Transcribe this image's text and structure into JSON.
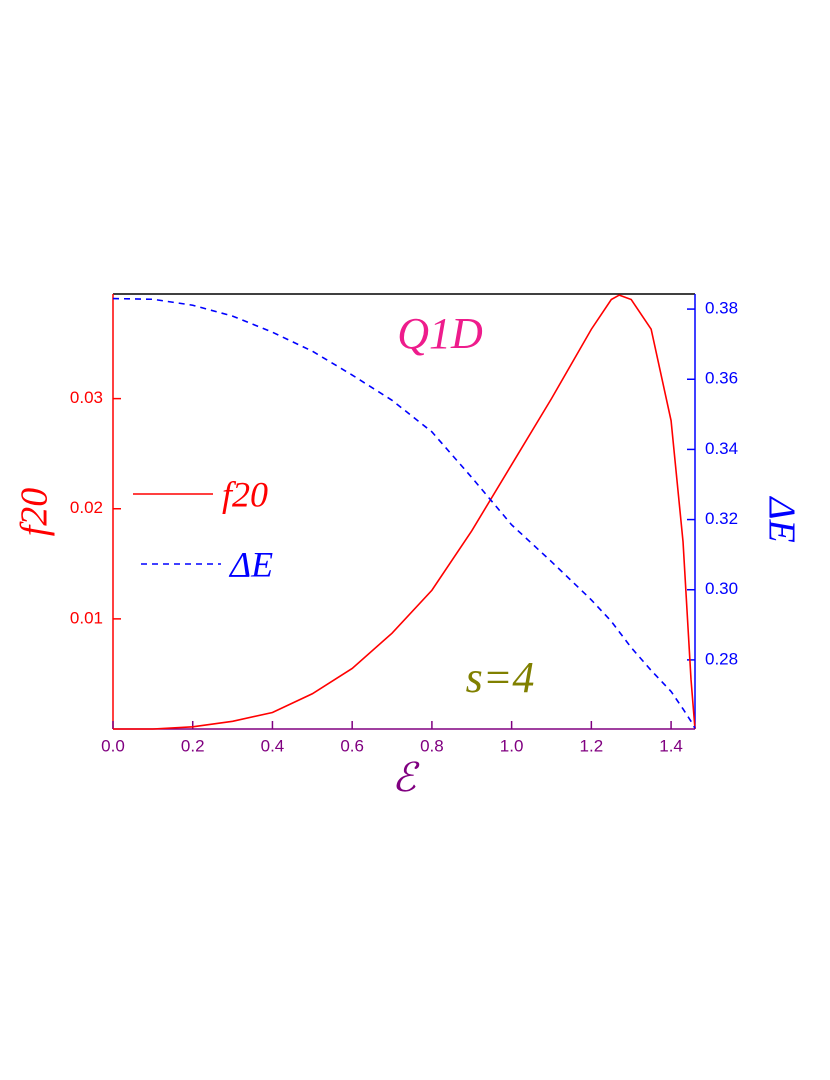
{
  "chart_data": {
    "type": "line",
    "x": [
      0,
      0.1,
      0.2,
      0.3,
      0.4,
      0.5,
      0.6,
      0.7,
      0.8,
      0.9,
      1.0,
      1.1,
      1.2,
      1.25,
      1.27,
      1.3,
      1.35,
      1.4,
      1.43,
      1.45,
      1.46
    ],
    "series": [
      {
        "name": "f20",
        "color": "#ff0000",
        "linestyle": "solid",
        "axis": "y",
        "values": [
          0,
          0,
          0.0002,
          0.0007,
          0.0015,
          0.0032,
          0.0055,
          0.0087,
          0.0126,
          0.018,
          0.024,
          0.03,
          0.0363,
          0.039,
          0.0394,
          0.039,
          0.0363,
          0.028,
          0.017,
          0.0045,
          0
        ]
      },
      {
        "name": "ΔE",
        "color": "#0000ff",
        "linestyle": "dashed",
        "axis": "y2",
        "values": [
          0.383,
          0.3828,
          0.3811,
          0.378,
          0.3734,
          0.368,
          0.3612,
          0.354,
          0.345,
          0.332,
          0.3185,
          0.308,
          0.2971,
          0.291,
          0.288,
          0.2835,
          0.277,
          0.271,
          0.266,
          0.2625,
          0.2605
        ]
      }
    ],
    "xlabel": "ℰ",
    "ylabel": "f20",
    "y2label": "ΔE",
    "annotations": [
      "Q1D",
      "s=4"
    ],
    "xlim": [
      0,
      1.46
    ],
    "xticks": [
      {
        "value": 0,
        "label": "0.0"
      },
      0.2,
      0.4,
      0.6,
      0.8,
      {
        "value": 1,
        "label": "1.0"
      },
      1.2,
      1.4
    ],
    "ylim": [
      0,
      0.0395
    ],
    "yticks": [
      0.01,
      0.02,
      0.03
    ],
    "y2lim": [
      0.2603,
      0.3843
    ],
    "y2ticks": [
      0.28,
      {
        "value": 0.3,
        "label": "0.30"
      },
      0.32,
      0.34,
      0.36,
      0.38
    ],
    "legend": "left"
  }
}
